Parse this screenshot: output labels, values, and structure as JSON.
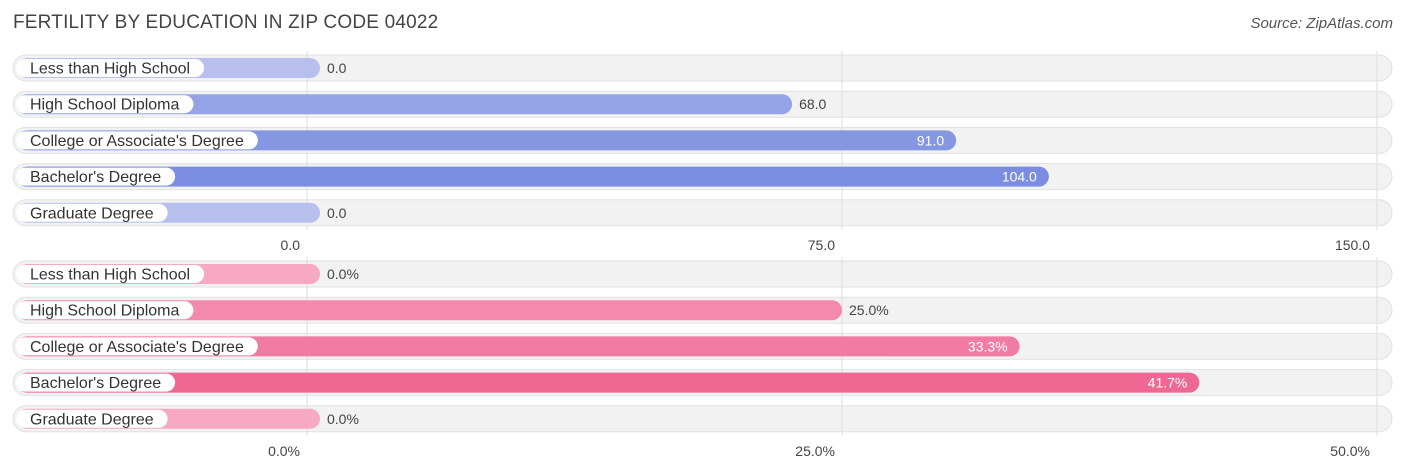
{
  "header": {
    "title": "FERTILITY BY EDUCATION IN ZIP CODE 04022",
    "source": "Source: ZipAtlas.com"
  },
  "chart_data": [
    {
      "type": "bar",
      "orientation": "horizontal",
      "categories": [
        "Less than High School",
        "High School Diploma",
        "College or Associate's Degree",
        "Bachelor's Degree",
        "Graduate Degree"
      ],
      "values": [
        0.0,
        68.0,
        91.0,
        104.0,
        0.0
      ],
      "value_labels": [
        "0.0",
        "68.0",
        "91.0",
        "104.0",
        "0.0"
      ],
      "xlim": [
        0,
        150
      ],
      "ticks": [
        0,
        75,
        150
      ],
      "tick_labels": [
        "0.0",
        "75.0",
        "150.0"
      ],
      "colors": [
        "#b7c0ed",
        "#94a4e6",
        "#8597e1",
        "#7b8de0",
        "#b7c0ed"
      ],
      "grid": true
    },
    {
      "type": "bar",
      "orientation": "horizontal",
      "categories": [
        "Less than High School",
        "High School Diploma",
        "College or Associate's Degree",
        "Bachelor's Degree",
        "Graduate Degree"
      ],
      "values": [
        0.0,
        25.0,
        33.3,
        41.7,
        0.0
      ],
      "value_labels": [
        "0.0%",
        "25.0%",
        "33.3%",
        "41.7%",
        "0.0%"
      ],
      "xlim": [
        0,
        50
      ],
      "ticks": [
        0,
        25,
        50
      ],
      "tick_labels": [
        "0.0%",
        "25.0%",
        "50.0%"
      ],
      "colors": [
        "#f7a8c3",
        "#f38aae",
        "#f17ba3",
        "#ef6894",
        "#f7a8c3"
      ],
      "grid": true
    }
  ]
}
